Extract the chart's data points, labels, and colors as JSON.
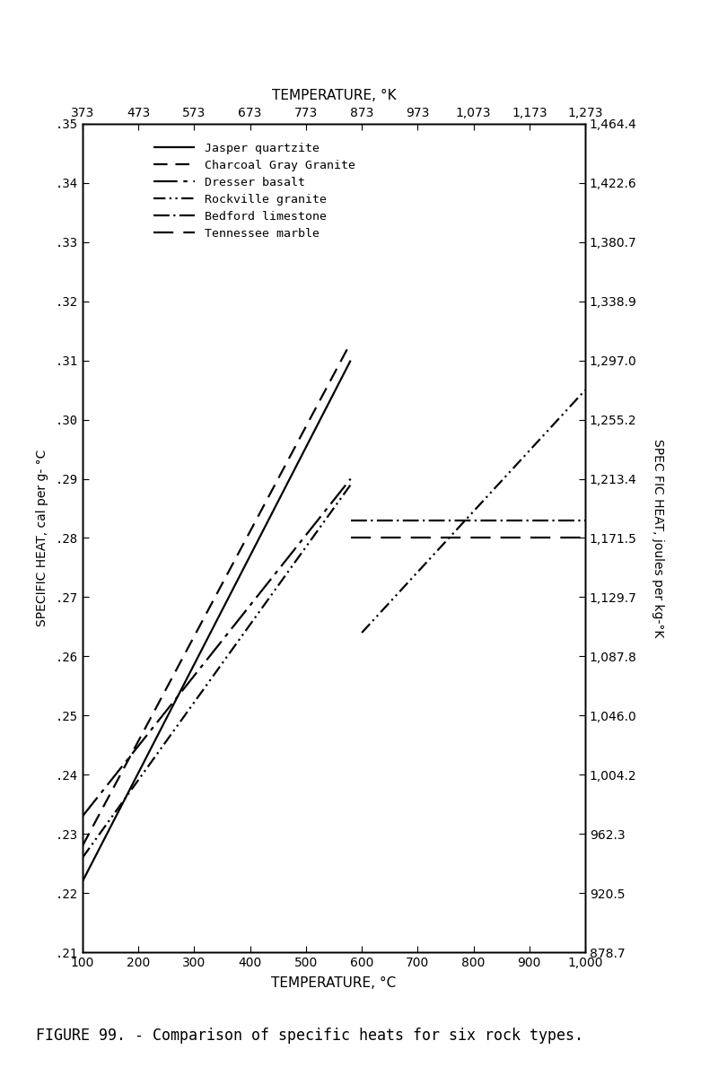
{
  "title_top": "TEMPERATURE, °K",
  "xlabel": "TEMPERATURE, °C",
  "ylabel_left": "SPECIFIC HEAT, cal per g- °C",
  "ylabel_right": "SPEC FIC HEAT, joules per kg-°K",
  "caption": "FIGURE 99. - Comparison of specific heats for six rock types.",
  "xlim": [
    100,
    1000
  ],
  "ylim": [
    0.21,
    0.35
  ],
  "xticks": [
    100,
    200,
    300,
    400,
    500,
    600,
    700,
    800,
    900,
    1000
  ],
  "yticks_left": [
    0.21,
    0.22,
    0.23,
    0.24,
    0.25,
    0.26,
    0.27,
    0.28,
    0.29,
    0.3,
    0.31,
    0.32,
    0.33,
    0.34,
    0.35
  ],
  "xticks_top": [
    373,
    473,
    573,
    673,
    773,
    873,
    973,
    1073,
    1173,
    1273
  ],
  "yticks_right": [
    878.7,
    920.5,
    962.3,
    1004.2,
    1046.0,
    1087.8,
    1129.7,
    1171.5,
    1213.4,
    1255.2,
    1297.0,
    1338.9,
    1380.7,
    1422.6,
    1464.4
  ],
  "series": [
    {
      "name": "Jasper quartzite",
      "style": "solid",
      "segments": [
        {
          "x": [
            100,
            580
          ],
          "y": [
            0.222,
            0.31
          ]
        }
      ]
    },
    {
      "name": "Charcoal Gray Granite",
      "style": "dashed",
      "segments": [
        {
          "x": [
            100,
            580
          ],
          "y": [
            0.228,
            0.313
          ]
        }
      ]
    },
    {
      "name": "Dresser basalt",
      "style": "dash_long",
      "segments": [
        {
          "x": [
            100,
            580
          ],
          "y": [
            0.233,
            0.29
          ]
        }
      ]
    },
    {
      "name": "Rockville granite",
      "style": "dashdotdot",
      "segments": [
        {
          "x": [
            100,
            580
          ],
          "y": [
            0.226,
            0.289
          ]
        },
        {
          "x": [
            600,
            1000
          ],
          "y": [
            0.264,
            0.305
          ]
        }
      ]
    },
    {
      "name": "Bedford limestone",
      "style": "dashdot",
      "segments": [
        {
          "x": [
            580,
            1000
          ],
          "y": [
            0.283,
            0.283
          ]
        }
      ]
    },
    {
      "name": "Tennessee marble",
      "style": "longdash",
      "segments": [
        {
          "x": [
            580,
            1000
          ],
          "y": [
            0.28,
            0.28
          ]
        }
      ]
    }
  ],
  "linewidth": 1.6,
  "background_color": "#ffffff",
  "line_color": "#000000"
}
